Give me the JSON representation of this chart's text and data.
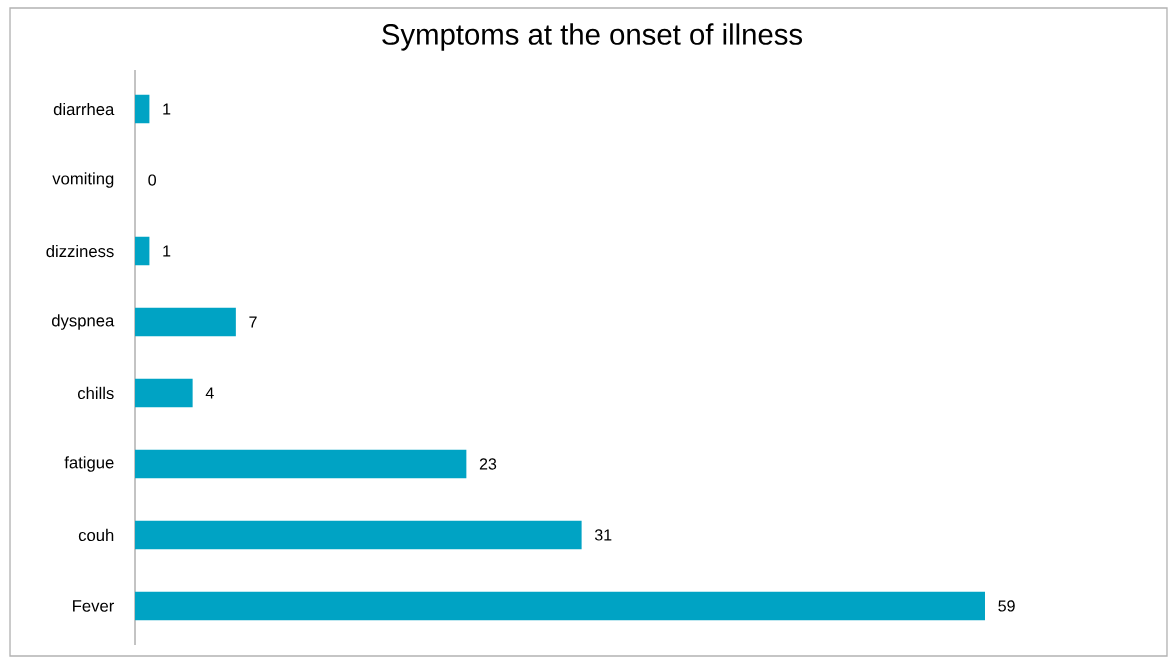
{
  "chart_data": {
    "type": "bar",
    "orientation": "horizontal",
    "title": "Symptoms at the onset of illness",
    "categories": [
      "diarrhea",
      "vomiting",
      "dizziness",
      "dyspnea",
      "chills",
      "fatigue",
      "couh",
      "Fever"
    ],
    "values": [
      1,
      0,
      1,
      7,
      4,
      23,
      31,
      59
    ],
    "color": "#00a3c4",
    "data_labels": true
  }
}
